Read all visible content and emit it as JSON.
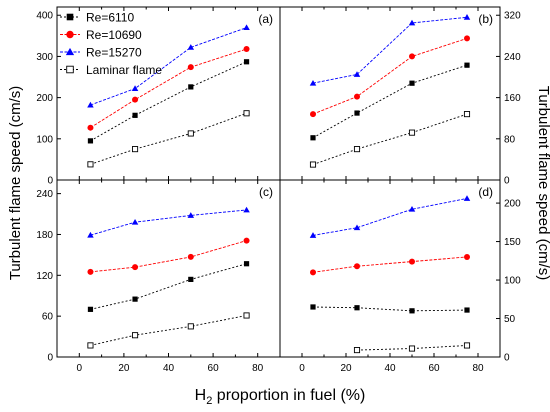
{
  "figure": {
    "ylabel_left": "Turbulent flame speed (cm/s)",
    "ylabel_right": "Turbulent flame speed (cm/s)",
    "xlabel_main": "H",
    "xlabel_sub": "2",
    "xlabel_rest": " proportion in fuel (%)"
  },
  "legend": [
    {
      "name": "Re=6110",
      "color": "#000000",
      "marker": "square"
    },
    {
      "name": "Re=10690",
      "color": "#ff0000",
      "marker": "circle"
    },
    {
      "name": "Re=15270",
      "color": "#0000ff",
      "marker": "triangle"
    },
    {
      "name": "Laminar flame",
      "color": "#000000",
      "marker": "open-square"
    }
  ],
  "chart_data": [
    {
      "panel": "(a)",
      "type": "line",
      "x": [
        5,
        25,
        50,
        75
      ],
      "xlim": [
        -10,
        90
      ],
      "ylim": [
        0,
        420
      ],
      "yticks": [
        0,
        100,
        200,
        300,
        400
      ],
      "xticks": [
        0,
        10,
        20,
        30,
        40,
        50,
        60,
        70,
        80
      ],
      "xticklabels": [
        "0",
        "10",
        "20",
        "30",
        "40",
        "50",
        "60",
        "70",
        "80"
      ],
      "series": [
        {
          "name": "Re=6110",
          "values": [
            95,
            157,
            226,
            287
          ]
        },
        {
          "name": "Re=10690",
          "values": [
            127,
            195,
            274,
            318
          ]
        },
        {
          "name": "Re=15270",
          "values": [
            182,
            222,
            322,
            370
          ]
        },
        {
          "name": "Laminar flame",
          "values": [
            38,
            75,
            113,
            162
          ]
        }
      ]
    },
    {
      "panel": "(b)",
      "type": "line",
      "x": [
        5,
        25,
        50,
        75
      ],
      "xlim": [
        -10,
        90
      ],
      "ylim": [
        0,
        336
      ],
      "yticks": [
        0,
        80,
        160,
        240,
        320
      ],
      "xticks": [
        0,
        10,
        20,
        30,
        40,
        50,
        60,
        70,
        80
      ],
      "xticklabels": [
        "0",
        "10",
        "20",
        "30",
        "40",
        "50",
        "60",
        "70",
        "80"
      ],
      "series": [
        {
          "name": "Re=6110",
          "values": [
            82,
            130,
            188,
            223
          ]
        },
        {
          "name": "Re=10690",
          "values": [
            128,
            162,
            240,
            275
          ]
        },
        {
          "name": "Re=15270",
          "values": [
            188,
            205,
            305,
            316
          ]
        },
        {
          "name": "Laminar flame",
          "values": [
            30,
            60,
            92,
            128
          ]
        }
      ]
    },
    {
      "panel": "(c)",
      "type": "line",
      "x": [
        5,
        25,
        50,
        75
      ],
      "xlim": [
        -10,
        90
      ],
      "ylim": [
        0,
        260
      ],
      "yticks": [
        0,
        60,
        120,
        180,
        240
      ],
      "xticks": [
        0,
        10,
        20,
        30,
        40,
        50,
        60,
        70,
        80
      ],
      "xticklabels": [
        "0",
        "10",
        "20",
        "30",
        "40",
        "50",
        "60",
        "70",
        "80"
      ],
      "series": [
        {
          "name": "Re=6110",
          "values": [
            70,
            85,
            114,
            137
          ]
        },
        {
          "name": "Re=10690",
          "values": [
            125,
            132,
            147,
            171
          ]
        },
        {
          "name": "Re=15270",
          "values": [
            179,
            198,
            208,
            216
          ]
        },
        {
          "name": "Laminar flame",
          "values": [
            17,
            32,
            45,
            61
          ]
        }
      ]
    },
    {
      "panel": "(d)",
      "type": "line",
      "x": [
        5,
        25,
        50,
        75
      ],
      "xlim": [
        -10,
        90
      ],
      "ylim": [
        0,
        230
      ],
      "yticks": [
        0,
        50,
        100,
        150,
        200
      ],
      "xticks": [
        0,
        10,
        20,
        30,
        40,
        50,
        60,
        70,
        80
      ],
      "xticklabels": [
        "0",
        "10",
        "20",
        "30",
        "40",
        "50",
        "60",
        "70",
        "80"
      ],
      "series": [
        {
          "name": "Re=6110",
          "x": [
            5,
            25,
            50,
            75
          ],
          "values": [
            65,
            64,
            60,
            61
          ]
        },
        {
          "name": "Re=10690",
          "x": [
            5,
            25,
            50,
            75
          ],
          "values": [
            110,
            118,
            124,
            130
          ]
        },
        {
          "name": "Re=15270",
          "x": [
            5,
            25,
            50,
            75
          ],
          "values": [
            158,
            168,
            192,
            206
          ]
        },
        {
          "name": "Laminar flame",
          "x": [
            25,
            50,
            75
          ],
          "values": [
            9,
            11,
            15
          ]
        }
      ]
    }
  ]
}
